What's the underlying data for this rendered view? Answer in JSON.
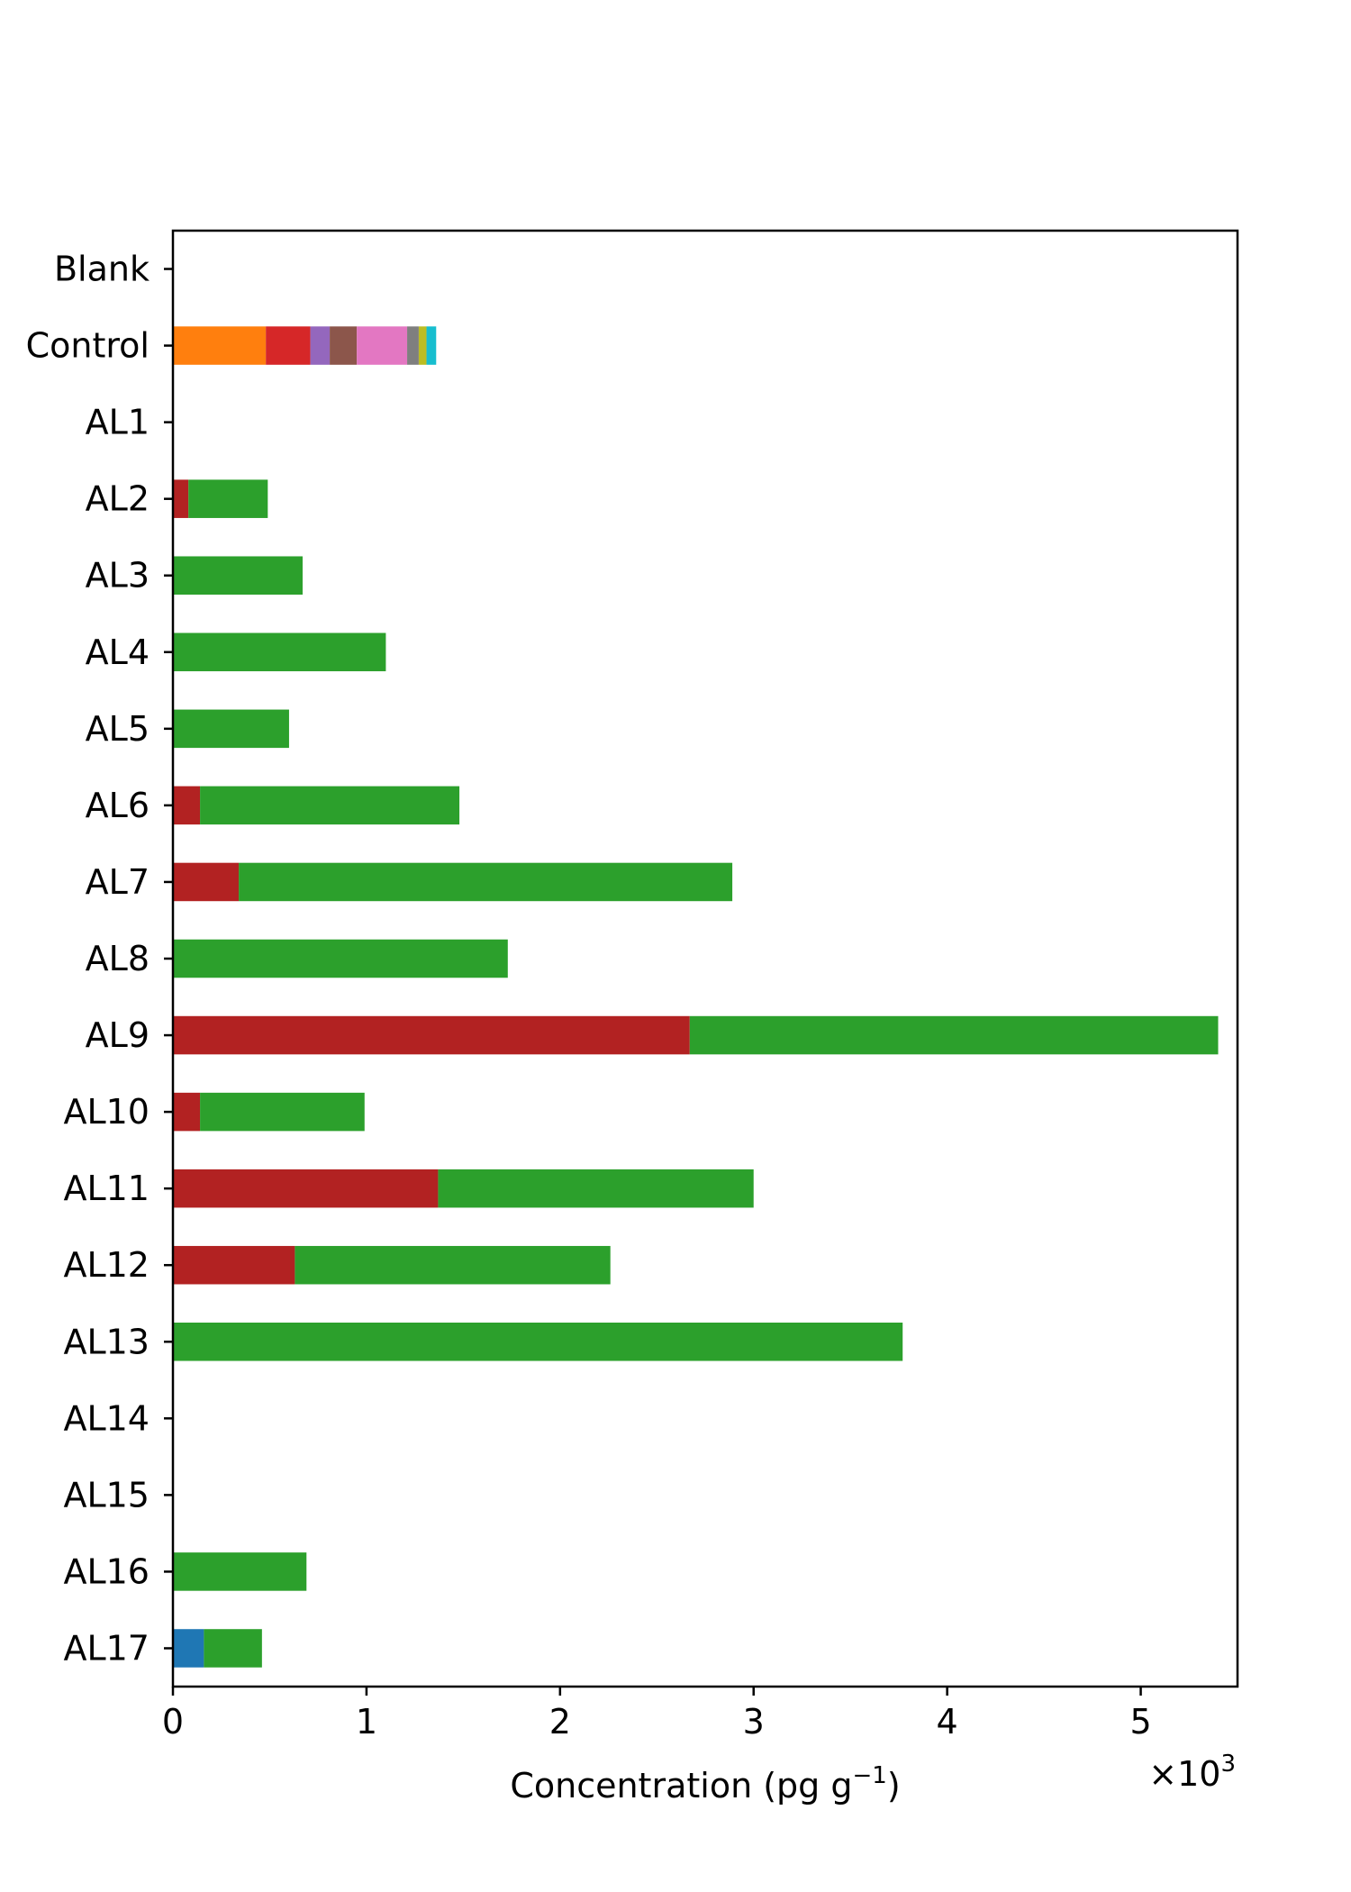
{
  "chart_data": {
    "type": "bar",
    "orientation": "horizontal",
    "stacked": true,
    "title": "",
    "xlabel_prefix": "Concentration (pg g",
    "xlabel_exponent": "−1",
    "xlabel_suffix": ")",
    "xlabel": "Concentration (pg g−1)",
    "ylabel": "",
    "x_scale_base": "×10",
    "x_scale_exponent": "3",
    "x_scale_label": "×10^3",
    "xlim": [
      0,
      5.5
    ],
    "xticks": [
      0,
      1,
      2,
      3,
      4,
      5
    ],
    "xtick_labels": [
      "0",
      "1",
      "2",
      "3",
      "4",
      "5"
    ],
    "grid": false,
    "legend": "none",
    "categories": [
      "Blank",
      "Control",
      "AL1",
      "AL2",
      "AL3",
      "AL4",
      "AL5",
      "AL6",
      "AL7",
      "AL8",
      "AL9",
      "AL10",
      "AL11",
      "AL12",
      "AL13",
      "AL14",
      "AL15",
      "AL16",
      "AL17"
    ],
    "series": [
      {
        "color": "#1f77b4",
        "values": [
          0,
          0,
          0,
          0,
          0,
          0,
          0,
          0,
          0,
          0,
          0,
          0,
          0,
          0,
          0,
          0,
          0,
          0,
          0.16
        ]
      },
      {
        "color": "#ff7f0e",
        "values": [
          0,
          0.48,
          0,
          0,
          0,
          0,
          0,
          0,
          0,
          0,
          0,
          0,
          0,
          0,
          0,
          0,
          0,
          0,
          0
        ]
      },
      {
        "color": "#d62728",
        "values": [
          0,
          0.23,
          0,
          0,
          0,
          0,
          0,
          0,
          0,
          0,
          0,
          0,
          0,
          0,
          0,
          0,
          0,
          0,
          0
        ]
      },
      {
        "color": "#b22222",
        "values": [
          0,
          0,
          0,
          0.08,
          0,
          0,
          0,
          0.14,
          0.34,
          0,
          2.67,
          0.14,
          1.37,
          0.63,
          0,
          0,
          0,
          0,
          0
        ]
      },
      {
        "color": "#9467bd",
        "values": [
          0,
          0.1,
          0,
          0,
          0,
          0,
          0,
          0,
          0,
          0,
          0,
          0,
          0,
          0,
          0,
          0,
          0,
          0,
          0
        ]
      },
      {
        "color": "#8c564b",
        "values": [
          0,
          0.14,
          0,
          0,
          0,
          0,
          0,
          0,
          0,
          0,
          0,
          0,
          0,
          0,
          0,
          0,
          0,
          0,
          0
        ]
      },
      {
        "color": "#e377c2",
        "values": [
          0,
          0.26,
          0,
          0,
          0,
          0,
          0,
          0,
          0,
          0,
          0,
          0,
          0,
          0,
          0,
          0,
          0,
          0,
          0
        ]
      },
      {
        "color": "#7f7f7f",
        "values": [
          0,
          0.06,
          0,
          0,
          0,
          0,
          0,
          0,
          0,
          0,
          0,
          0,
          0,
          0,
          0,
          0,
          0,
          0,
          0
        ]
      },
      {
        "color": "#bcbd22",
        "values": [
          0,
          0.04,
          0,
          0,
          0,
          0,
          0,
          0,
          0,
          0,
          0,
          0,
          0,
          0,
          0,
          0,
          0,
          0,
          0
        ]
      },
      {
        "color": "#17becf",
        "values": [
          0,
          0.05,
          0,
          0,
          0,
          0,
          0,
          0,
          0,
          0,
          0,
          0,
          0,
          0,
          0,
          0,
          0,
          0,
          0
        ]
      },
      {
        "color": "#2ca02c",
        "values": [
          0,
          0,
          0,
          0.41,
          0.67,
          1.1,
          0.6,
          1.34,
          2.55,
          1.73,
          2.73,
          0.85,
          1.63,
          1.63,
          3.77,
          0,
          0,
          0.69,
          0.3
        ]
      }
    ]
  }
}
